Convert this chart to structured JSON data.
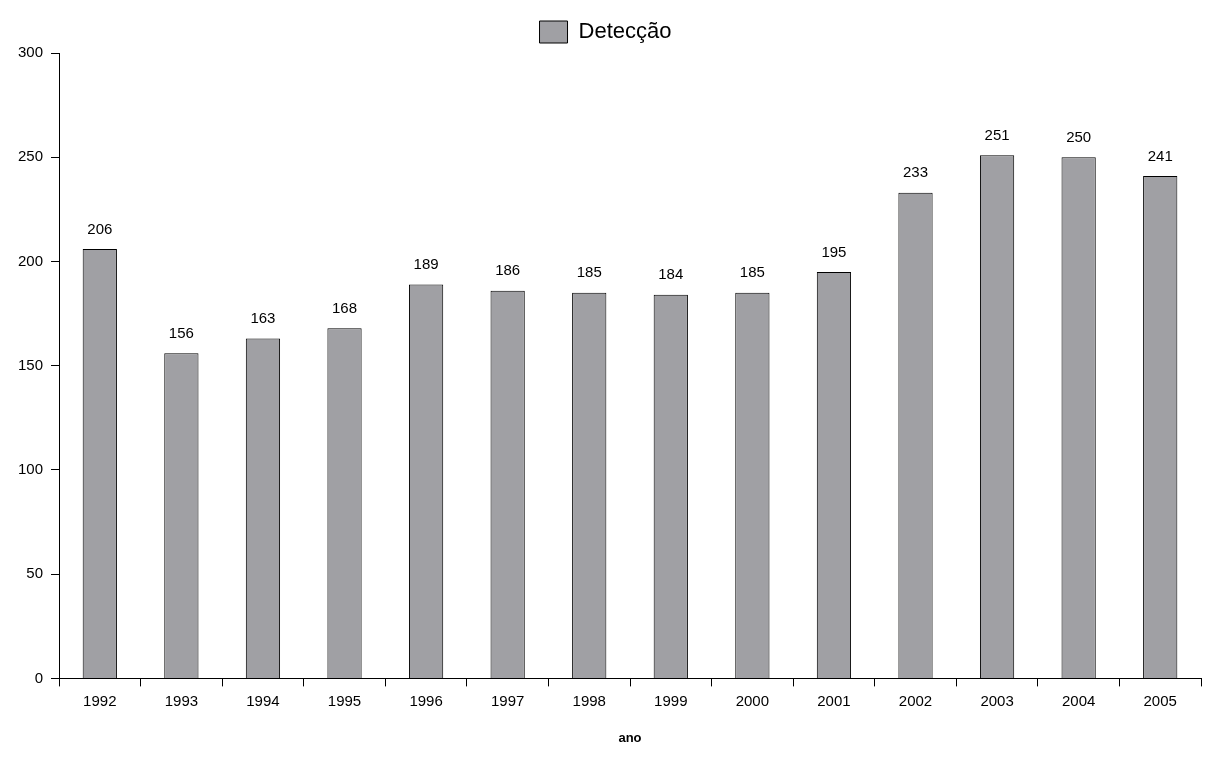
{
  "chart_data": {
    "type": "bar",
    "xlabel": "ano",
    "categories": [
      "1992",
      "1993",
      "1994",
      "1995",
      "1996",
      "1997",
      "1998",
      "1999",
      "2000",
      "2001",
      "2002",
      "2003",
      "2004",
      "2005"
    ],
    "series": [
      {
        "name": "Detecção",
        "color": "#a0a0a4",
        "values": [
          206,
          156,
          163,
          168,
          189,
          186,
          185,
          184,
          185,
          195,
          233,
          251,
          250,
          241
        ]
      }
    ],
    "ylim": [
      0,
      300
    ],
    "yticks": [
      0,
      50,
      100,
      150,
      200,
      250,
      300
    ],
    "grid": false,
    "legend": "top",
    "data_labels": true
  }
}
